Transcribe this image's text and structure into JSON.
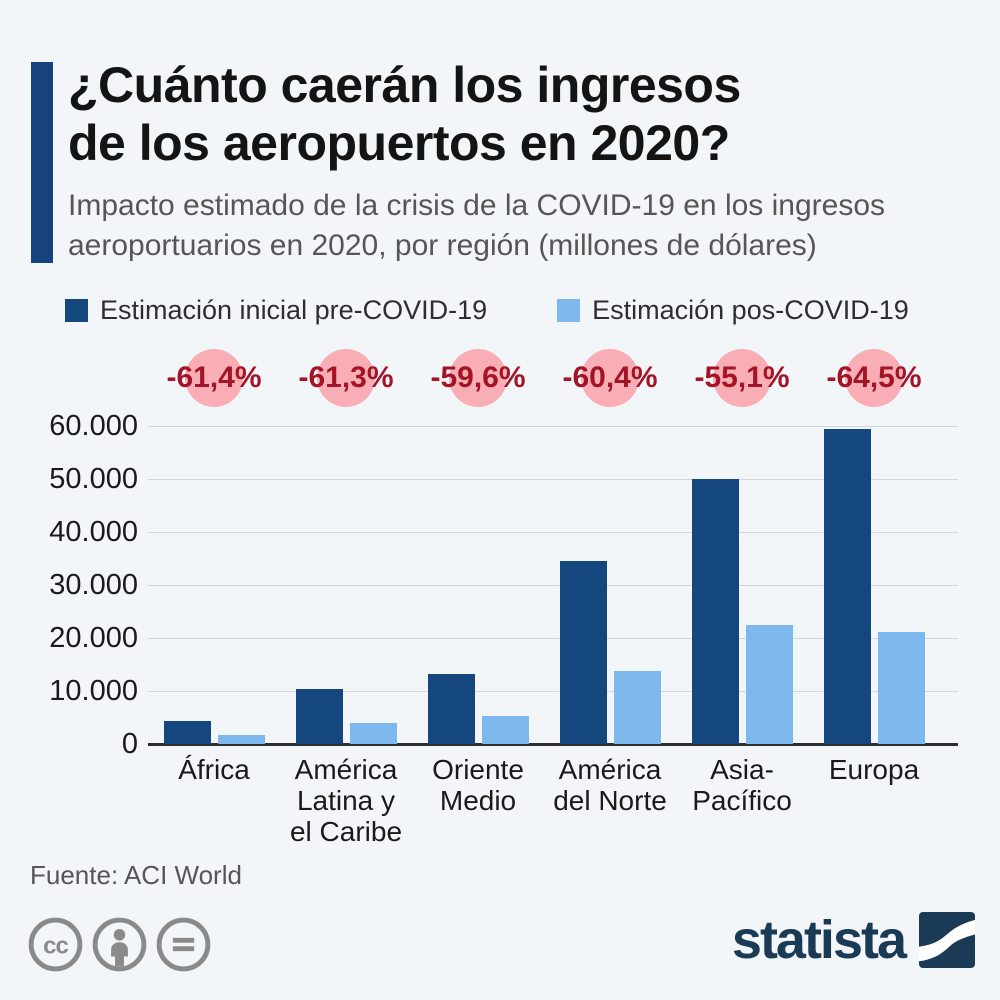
{
  "header": {
    "title_line1": "¿Cuánto caerán los ingresos",
    "title_line2": "de los aeropuertos en 2020?",
    "subtitle_line1": "Impacto estimado de la crisis de la COVID-19 en los ingresos",
    "subtitle_line2": "aeroportuarios en 2020, por región (millones de dólares)"
  },
  "legend": [
    {
      "label": "Estimación inicial pre-COVID-19",
      "color": "#14477e"
    },
    {
      "label": "Estimación pos-COVID-19",
      "color": "#7db9ec"
    }
  ],
  "chart_data": {
    "type": "bar",
    "title": "¿Cuánto caerán los ingresos de los aeropuertos en 2020?",
    "subtitle": "Impacto estimado de la crisis de la COVID-19 en los ingresos aeroportuarios en 2020, por región (millones de dólares)",
    "categories": [
      "África",
      "América Latina y el Caribe",
      "Oriente Medio",
      "América del Norte",
      "Asia-Pacífico",
      "Europa"
    ],
    "category_label_lines": [
      [
        "África"
      ],
      [
        "América",
        "Latina y",
        "el Caribe"
      ],
      [
        "Oriente",
        "Medio"
      ],
      [
        "América",
        "del Norte"
      ],
      [
        "Asia-",
        "Pacífico"
      ],
      [
        "Europa"
      ]
    ],
    "series": [
      {
        "name": "Estimación inicial pre-COVID-19",
        "color": "#14477e",
        "values": [
          4270,
          10430,
          13180,
          34610,
          49940,
          59350
        ]
      },
      {
        "name": "Estimación pos-COVID-19",
        "color": "#7db9ec",
        "values": [
          1650,
          4040,
          5330,
          13710,
          22420,
          21070
        ]
      }
    ],
    "change_badges": {
      "labels": [
        "-61,4%",
        "-61,3%",
        "-59,6%",
        "-60,4%",
        "-55,1%",
        "-64,5%"
      ],
      "bg_color": "#f9aeb6",
      "text_color": "#a31426"
    },
    "ylim": [
      0,
      60000
    ],
    "ytick_step": 10000,
    "ytick_labels": [
      "0",
      "10.000",
      "20.000",
      "30.000",
      "40.000",
      "50.000",
      "60.000"
    ],
    "grid": true,
    "legend_position": "top"
  },
  "footer": {
    "source": "Fuente: ACI World",
    "brand": "statista",
    "license_icons": [
      "cc-icon",
      "attribution-icon",
      "no-derivatives-icon"
    ]
  },
  "colors": {
    "background": "#f2f6f9",
    "accent_bar": "#16437e",
    "pre_covid": "#14477e",
    "pos_covid": "#7db9ec",
    "badge_bg": "#f9aeb6",
    "badge_text": "#a31426",
    "brand_navy": "#1b3a55",
    "license_gray": "#8a8a8a"
  }
}
